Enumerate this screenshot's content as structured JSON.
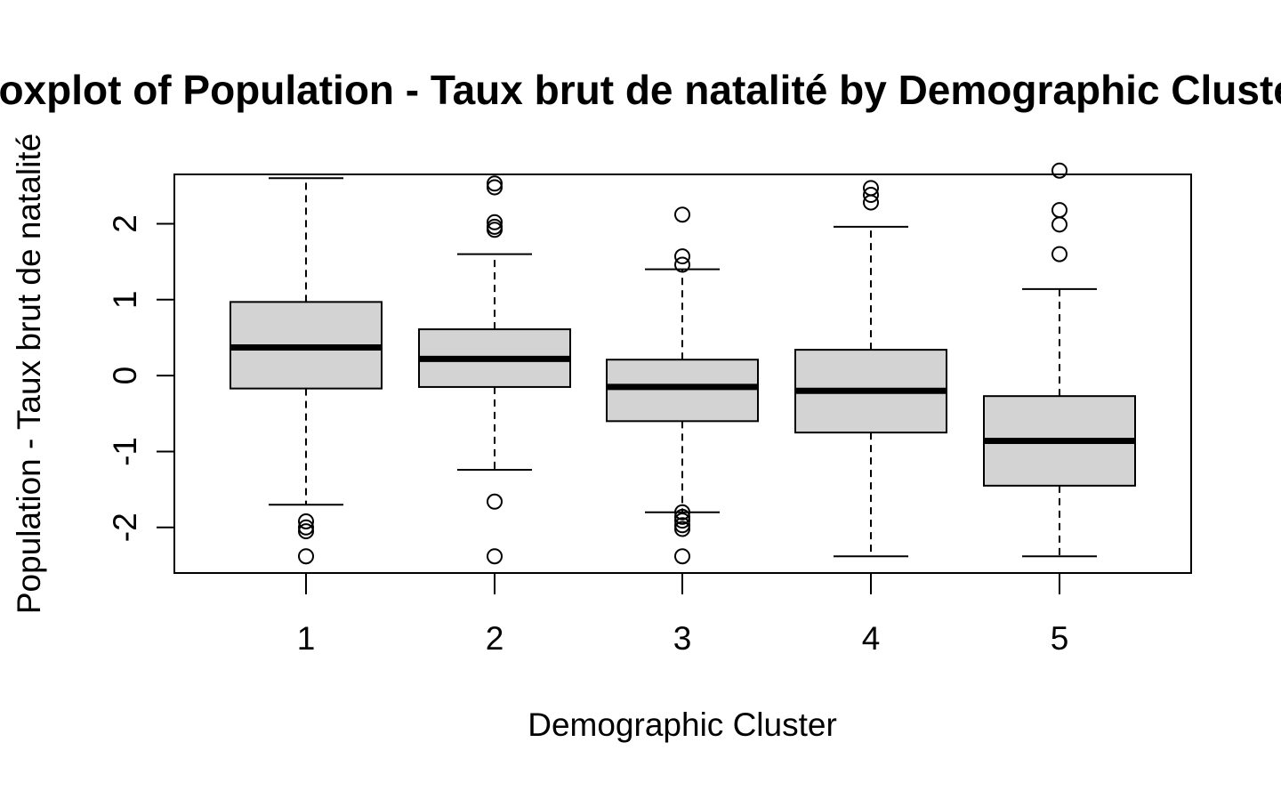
{
  "chart_data": {
    "type": "boxplot",
    "title": "Boxplot of Population - Taux brut de natalité by Demographic Cluster",
    "xlabel": "Demographic Cluster",
    "ylabel": "Population - Taux brut de natalité",
    "ylim": [
      -2.6,
      2.65
    ],
    "yticks": [
      -2,
      -1,
      0,
      1,
      2
    ],
    "ytick_labels": [
      "-2",
      "-1",
      "0",
      "1",
      "2"
    ],
    "categories": [
      "1",
      "2",
      "3",
      "4",
      "5"
    ],
    "box_fill": "#d3d3d3",
    "boxes": [
      {
        "category": "1",
        "whisker_low": -1.7,
        "q1": -0.17,
        "median": 0.37,
        "q3": 0.97,
        "whisker_high": 2.6,
        "outliers": [
          -1.92,
          -2.0,
          -2.05,
          -2.38
        ]
      },
      {
        "category": "2",
        "whisker_low": -1.24,
        "q1": -0.15,
        "median": 0.22,
        "q3": 0.61,
        "whisker_high": 1.6,
        "outliers": [
          1.92,
          1.96,
          2.02,
          2.48,
          2.53,
          -1.66,
          -2.38
        ]
      },
      {
        "category": "3",
        "whisker_low": -1.8,
        "q1": -0.6,
        "median": -0.15,
        "q3": 0.21,
        "whisker_high": 1.4,
        "outliers": [
          2.12,
          1.46,
          1.57,
          -1.8,
          -1.86,
          -1.91,
          -1.97,
          -2.02,
          -2.38
        ]
      },
      {
        "category": "4",
        "whisker_low": -2.38,
        "q1": -0.75,
        "median": -0.2,
        "q3": 0.34,
        "whisker_high": 1.96,
        "outliers": [
          2.28,
          2.38,
          2.47
        ]
      },
      {
        "category": "5",
        "whisker_low": -2.38,
        "q1": -1.45,
        "median": -0.86,
        "q3": -0.27,
        "whisker_high": 1.14,
        "outliers": [
          1.6,
          1.99,
          2.18,
          2.7
        ]
      }
    ]
  }
}
